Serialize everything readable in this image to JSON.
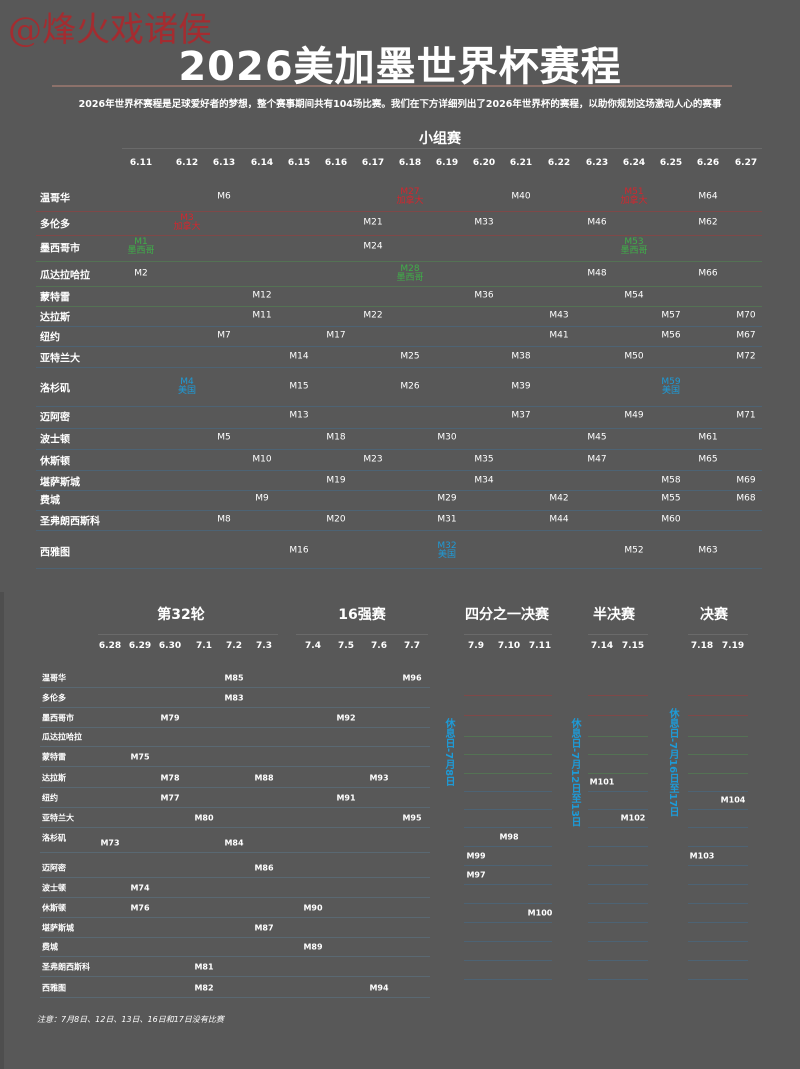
{
  "watermark": "@烽火戏诸侯",
  "title": "2026美加墨世界杯赛程",
  "subtitle": "2026年世界杯赛程是足球爱好者的梦想，整个赛事期间共有104场比赛。我们在下方详细列出了2026年世界杯的赛程，以助你规划这场激动人心的赛事",
  "colors": {
    "canada": "#d3262e",
    "mexico": "#3fae49",
    "usa": "#1e9ad6",
    "background": "#585858"
  },
  "cities": [
    "温哥华",
    "多伦多",
    "墨西哥市",
    "瓜达拉哈拉",
    "蒙特雷",
    "达拉斯",
    "纽约",
    "亚特兰大",
    "洛杉矶",
    "迈阿密",
    "波士顿",
    "休斯顿",
    "堪萨斯城",
    "费城",
    "圣弗朗西斯科",
    "西雅图"
  ],
  "city_country": [
    "canada",
    "canada",
    "mexico",
    "mexico",
    "mexico",
    "usa",
    "usa",
    "usa",
    "usa",
    "usa",
    "usa",
    "usa",
    "usa",
    "usa",
    "usa",
    "usa"
  ],
  "group_stage": {
    "title": "小组赛",
    "dates": [
      "6.11",
      "6.12",
      "6.13",
      "6.14",
      "6.15",
      "6.16",
      "6.17",
      "6.18",
      "6.19",
      "6.20",
      "6.21",
      "6.22",
      "6.23",
      "6.24",
      "6.25",
      "6.26",
      "6.27"
    ],
    "matches": [
      [
        {
          "d": "6.13",
          "m": "M6"
        },
        {
          "d": "6.18",
          "m": "M27",
          "team": "加拿大",
          "c": "canada"
        },
        {
          "d": "6.21",
          "m": "M40"
        },
        {
          "d": "6.24",
          "m": "M51",
          "team": "加拿大",
          "c": "canada"
        },
        {
          "d": "6.26",
          "m": "M64"
        }
      ],
      [
        {
          "d": "6.12",
          "m": "M3",
          "team": "加拿大",
          "c": "canada"
        },
        {
          "d": "6.17",
          "m": "M21"
        },
        {
          "d": "6.20",
          "m": "M33"
        },
        {
          "d": "6.23",
          "m": "M46"
        },
        {
          "d": "6.26",
          "m": "M62"
        }
      ],
      [
        {
          "d": "6.11",
          "m": "M1",
          "team": "墨西哥",
          "c": "mexico"
        },
        {
          "d": "6.17",
          "m": "M24"
        },
        {
          "d": "6.24",
          "m": "M53",
          "team": "墨西哥",
          "c": "mexico"
        }
      ],
      [
        {
          "d": "6.11",
          "m": "M2"
        },
        {
          "d": "6.18",
          "m": "M28",
          "team": "墨西哥",
          "c": "mexico"
        },
        {
          "d": "6.23",
          "m": "M48"
        },
        {
          "d": "6.26",
          "m": "M66"
        }
      ],
      [
        {
          "d": "6.14",
          "m": "M12"
        },
        {
          "d": "6.20",
          "m": "M36"
        },
        {
          "d": "6.24",
          "m": "M54"
        }
      ],
      [
        {
          "d": "6.14",
          "m": "M11"
        },
        {
          "d": "6.17",
          "m": "M22"
        },
        {
          "d": "6.22",
          "m": "M43"
        },
        {
          "d": "6.25",
          "m": "M57"
        },
        {
          "d": "6.27",
          "m": "M70"
        }
      ],
      [
        {
          "d": "6.13",
          "m": "M7"
        },
        {
          "d": "6.16",
          "m": "M17"
        },
        {
          "d": "6.22",
          "m": "M41"
        },
        {
          "d": "6.25",
          "m": "M56"
        },
        {
          "d": "6.27",
          "m": "M67"
        }
      ],
      [
        {
          "d": "6.15",
          "m": "M14"
        },
        {
          "d": "6.18",
          "m": "M25"
        },
        {
          "d": "6.21",
          "m": "M38"
        },
        {
          "d": "6.24",
          "m": "M50"
        },
        {
          "d": "6.27",
          "m": "M72"
        }
      ],
      [
        {
          "d": "6.12",
          "m": "M4",
          "team": "美国",
          "c": "usa"
        },
        {
          "d": "6.15",
          "m": "M15"
        },
        {
          "d": "6.18",
          "m": "M26"
        },
        {
          "d": "6.21",
          "m": "M39"
        },
        {
          "d": "6.25",
          "m": "M59",
          "team": "美国",
          "c": "usa"
        }
      ],
      [
        {
          "d": "6.15",
          "m": "M13"
        },
        {
          "d": "6.21",
          "m": "M37"
        },
        {
          "d": "6.24",
          "m": "M49"
        },
        {
          "d": "6.27",
          "m": "M71"
        }
      ],
      [
        {
          "d": "6.13",
          "m": "M5"
        },
        {
          "d": "6.16",
          "m": "M18"
        },
        {
          "d": "6.19",
          "m": "M30"
        },
        {
          "d": "6.23",
          "m": "M45"
        },
        {
          "d": "6.26",
          "m": "M61"
        }
      ],
      [
        {
          "d": "6.14",
          "m": "M10"
        },
        {
          "d": "6.17",
          "m": "M23"
        },
        {
          "d": "6.20",
          "m": "M35"
        },
        {
          "d": "6.23",
          "m": "M47"
        },
        {
          "d": "6.26",
          "m": "M65"
        }
      ],
      [
        {
          "d": "6.16",
          "m": "M19"
        },
        {
          "d": "6.20",
          "m": "M34"
        },
        {
          "d": "6.25",
          "m": "M58"
        },
        {
          "d": "6.27",
          "m": "M69"
        }
      ],
      [
        {
          "d": "6.14",
          "m": "M9"
        },
        {
          "d": "6.19",
          "m": "M29"
        },
        {
          "d": "6.22",
          "m": "M42"
        },
        {
          "d": "6.25",
          "m": "M55"
        },
        {
          "d": "6.27",
          "m": "M68"
        }
      ],
      [
        {
          "d": "6.13",
          "m": "M8"
        },
        {
          "d": "6.16",
          "m": "M20"
        },
        {
          "d": "6.19",
          "m": "M31"
        },
        {
          "d": "6.22",
          "m": "M44"
        },
        {
          "d": "6.25",
          "m": "M60"
        }
      ],
      [
        {
          "d": "6.15",
          "m": "M16"
        },
        {
          "d": "6.19",
          "m": "M32",
          "team": "美国",
          "c": "usa"
        },
        {
          "d": "6.24",
          "m": "M52"
        },
        {
          "d": "6.26",
          "m": "M63"
        }
      ]
    ]
  },
  "knockout": {
    "stages": [
      {
        "title": "第32轮",
        "dates": [
          "6.28",
          "6.29",
          "6.30",
          "7.1",
          "7.2",
          "7.3"
        ]
      },
      {
        "title": "16强赛",
        "dates": [
          "7.4",
          "7.5",
          "7.6",
          "7.7"
        ]
      },
      {
        "title": "四分之一决赛",
        "dates": [
          "7.9",
          "7.10",
          "7.11"
        ]
      },
      {
        "title": "半决赛",
        "dates": [
          "7.14",
          "7.15"
        ]
      },
      {
        "title": "决赛",
        "dates": [
          "7.18",
          "7.19"
        ]
      }
    ],
    "matches": [
      [
        {
          "d": "7.2",
          "m": "M85"
        },
        {
          "d": "7.7",
          "m": "M96"
        }
      ],
      [
        {
          "d": "7.2",
          "m": "M83"
        }
      ],
      [
        {
          "d": "6.30",
          "m": "M79"
        },
        {
          "d": "7.5",
          "m": "M92"
        }
      ],
      [],
      [
        {
          "d": "6.29",
          "m": "M75"
        }
      ],
      [
        {
          "d": "6.30",
          "m": "M78"
        },
        {
          "d": "7.3",
          "m": "M88"
        },
        {
          "d": "7.6",
          "m": "M93"
        },
        {
          "d": "7.14",
          "m": "M101"
        }
      ],
      [
        {
          "d": "6.30",
          "m": "M77"
        },
        {
          "d": "7.5",
          "m": "M91"
        },
        {
          "d": "7.19",
          "m": "M104"
        }
      ],
      [
        {
          "d": "7.1",
          "m": "M80"
        },
        {
          "d": "7.7",
          "m": "M95"
        },
        {
          "d": "7.15",
          "m": "M102"
        }
      ],
      [
        {
          "d": "6.28",
          "m": "M73"
        },
        {
          "d": "7.2",
          "m": "M84"
        },
        {
          "d": "7.10",
          "m": "M98"
        }
      ],
      [
        {
          "d": "7.3",
          "m": "M86"
        },
        {
          "d": "7.9",
          "m": "M99"
        },
        {
          "d": "7.18",
          "m": "M103"
        }
      ],
      [
        {
          "d": "6.29",
          "m": "M74"
        },
        {
          "d": "7.9",
          "m": "M97"
        }
      ],
      [
        {
          "d": "6.29",
          "m": "M76"
        },
        {
          "d": "7.4",
          "m": "M90"
        }
      ],
      [
        {
          "d": "7.3",
          "m": "M87"
        },
        {
          "d": "7.11",
          "m": "M100"
        }
      ],
      [
        {
          "d": "7.4",
          "m": "M89"
        }
      ],
      [
        {
          "d": "7.1",
          "m": "M81"
        }
      ],
      [
        {
          "d": "7.1",
          "m": "M82"
        },
        {
          "d": "7.6",
          "m": "M94"
        }
      ]
    ],
    "rest_days": [
      "休息日-7月8日",
      "休息日-7月12日至13日",
      "休息日-7月16日至17日"
    ]
  },
  "note": "注意：7月8日、12日、13日、16日和17日没有比赛"
}
